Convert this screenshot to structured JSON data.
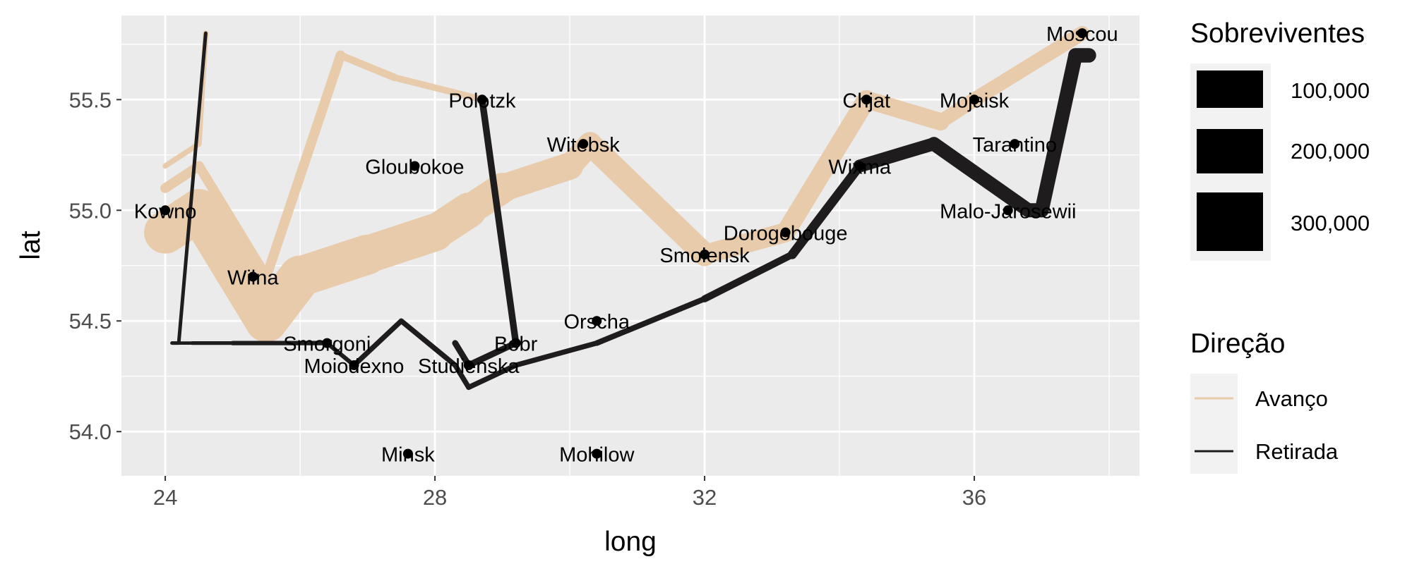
{
  "chart_data": {
    "type": "line",
    "xlabel": "long",
    "ylabel": "lat",
    "xlim": [
      23.35,
      38.45
    ],
    "ylim": [
      53.8,
      55.88
    ],
    "x_ticks": [
      24,
      28,
      32,
      36
    ],
    "y_ticks": [
      54.0,
      54.5,
      55.0,
      55.5
    ],
    "x_tick_labels": [
      "24",
      "28",
      "32",
      "36"
    ],
    "y_tick_labels": [
      "54.0",
      "54.5",
      "55.0",
      "55.5"
    ],
    "grid": true,
    "background": "#ebebeb",
    "legend_placement": "right",
    "size_legend": {
      "title": "Sobreviventes",
      "entries": [
        {
          "label": "100,000",
          "value": 100000
        },
        {
          "label": "200,000",
          "value": 200000
        },
        {
          "label": "300,000",
          "value": 300000
        }
      ]
    },
    "color_legend": {
      "title": "Direção",
      "entries": [
        {
          "label": "Avanço",
          "color": "#e8cbab"
        },
        {
          "label": "Retirada",
          "color": "#1e1c1c"
        }
      ]
    },
    "series": [
      {
        "group": 1,
        "direction": "Avanço",
        "color": "#e8cbab",
        "points": [
          {
            "long": 24.0,
            "lat": 54.9,
            "survivors": 340000
          },
          {
            "long": 24.5,
            "lat": 55.0,
            "survivors": 340000
          },
          {
            "long": 25.5,
            "lat": 54.5,
            "survivors": 340000
          },
          {
            "long": 26.0,
            "lat": 54.7,
            "survivors": 320000
          },
          {
            "long": 27.0,
            "lat": 54.8,
            "survivors": 300000
          },
          {
            "long": 28.0,
            "lat": 54.9,
            "survivors": 280000
          },
          {
            "long": 28.5,
            "lat": 55.0,
            "survivors": 240000
          },
          {
            "long": 29.0,
            "lat": 55.1,
            "survivors": 210000
          },
          {
            "long": 30.0,
            "lat": 55.2,
            "survivors": 180000
          },
          {
            "long": 30.3,
            "lat": 55.3,
            "survivors": 175000
          },
          {
            "long": 32.0,
            "lat": 54.8,
            "survivors": 145000
          },
          {
            "long": 33.2,
            "lat": 54.9,
            "survivors": 140000
          },
          {
            "long": 34.4,
            "lat": 55.5,
            "survivors": 127100
          },
          {
            "long": 35.5,
            "lat": 55.4,
            "survivors": 100000
          },
          {
            "long": 36.0,
            "lat": 55.5,
            "survivors": 100000
          },
          {
            "long": 37.6,
            "lat": 55.8,
            "survivors": 100000
          }
        ]
      },
      {
        "group": 1,
        "direction": "Retirada",
        "color": "#1e1c1c",
        "points": [
          {
            "long": 37.7,
            "lat": 55.7,
            "survivors": 100000
          },
          {
            "long": 37.5,
            "lat": 55.7,
            "survivors": 98000
          },
          {
            "long": 37.0,
            "lat": 55.0,
            "survivors": 97000
          },
          {
            "long": 36.8,
            "lat": 55.0,
            "survivors": 96000
          },
          {
            "long": 35.4,
            "lat": 55.3,
            "survivors": 87000
          },
          {
            "long": 34.3,
            "lat": 55.2,
            "survivors": 55000
          },
          {
            "long": 33.3,
            "lat": 54.8,
            "survivors": 37000
          },
          {
            "long": 32.0,
            "lat": 54.6,
            "survivors": 24000
          },
          {
            "long": 30.4,
            "lat": 54.4,
            "survivors": 20000
          },
          {
            "long": 29.2,
            "lat": 54.3,
            "survivors": 20000
          },
          {
            "long": 28.5,
            "lat": 54.2,
            "survivors": 20000
          },
          {
            "long": 28.3,
            "lat": 54.3,
            "survivors": 20000
          },
          {
            "long": 27.5,
            "lat": 54.5,
            "survivors": 20000
          },
          {
            "long": 26.8,
            "lat": 54.3,
            "survivors": 12000
          },
          {
            "long": 26.4,
            "lat": 54.4,
            "survivors": 14000
          },
          {
            "long": 25.0,
            "lat": 54.4,
            "survivors": 8000
          },
          {
            "long": 24.4,
            "lat": 54.4,
            "survivors": 4000
          },
          {
            "long": 24.2,
            "lat": 54.4,
            "survivors": 4000
          },
          {
            "long": 24.1,
            "lat": 54.4,
            "survivors": 4000
          }
        ]
      },
      {
        "group": 2,
        "direction": "Avanço",
        "color": "#e8cbab",
        "points": [
          {
            "long": 24.0,
            "lat": 55.1,
            "survivors": 60000
          },
          {
            "long": 24.5,
            "lat": 55.2,
            "survivors": 60000
          },
          {
            "long": 25.5,
            "lat": 54.7,
            "survivors": 60000
          },
          {
            "long": 26.6,
            "lat": 55.7,
            "survivors": 40000
          },
          {
            "long": 27.4,
            "lat": 55.6,
            "survivors": 33000
          },
          {
            "long": 28.7,
            "lat": 55.5,
            "survivors": 33000
          }
        ]
      },
      {
        "group": 2,
        "direction": "Retirada",
        "color": "#1e1c1c",
        "points": [
          {
            "long": 28.7,
            "lat": 55.5,
            "survivors": 33000
          },
          {
            "long": 29.2,
            "lat": 54.4,
            "survivors": 30000
          },
          {
            "long": 28.5,
            "lat": 54.3,
            "survivors": 28000
          },
          {
            "long": 28.3,
            "lat": 54.4,
            "survivors": 28000
          }
        ]
      },
      {
        "group": 3,
        "direction": "Avanço",
        "color": "#e8cbab",
        "points": [
          {
            "long": 24.0,
            "lat": 55.2,
            "survivors": 22000
          },
          {
            "long": 24.5,
            "lat": 55.3,
            "survivors": 22000
          },
          {
            "long": 24.6,
            "lat": 55.8,
            "survivors": 6000
          }
        ]
      },
      {
        "group": 3,
        "direction": "Retirada",
        "color": "#1e1c1c",
        "points": [
          {
            "long": 24.6,
            "lat": 55.8,
            "survivors": 6000
          },
          {
            "long": 24.2,
            "lat": 54.4,
            "survivors": 6000
          },
          {
            "long": 24.1,
            "lat": 54.4,
            "survivors": 6000
          }
        ]
      }
    ],
    "cities": [
      {
        "name": "Kowno",
        "long": 24.0,
        "lat": 55.0
      },
      {
        "name": "Wilna",
        "long": 25.3,
        "lat": 54.7
      },
      {
        "name": "Smorgoni",
        "long": 26.4,
        "lat": 54.4
      },
      {
        "name": "Moiodexno",
        "long": 26.8,
        "lat": 54.3
      },
      {
        "name": "Gloubokoe",
        "long": 27.7,
        "lat": 55.2
      },
      {
        "name": "Minsk",
        "long": 27.6,
        "lat": 53.9
      },
      {
        "name": "Studienska",
        "long": 28.5,
        "lat": 54.3
      },
      {
        "name": "Polotzk",
        "long": 28.7,
        "lat": 55.5
      },
      {
        "name": "Bobr",
        "long": 29.2,
        "lat": 54.4
      },
      {
        "name": "Witebsk",
        "long": 30.2,
        "lat": 55.3
      },
      {
        "name": "Orscha",
        "long": 30.4,
        "lat": 54.5
      },
      {
        "name": "Mohilow",
        "long": 30.4,
        "lat": 53.9
      },
      {
        "name": "Smolensk",
        "long": 32.0,
        "lat": 54.8
      },
      {
        "name": "Dorogobouge",
        "long": 33.2,
        "lat": 54.9
      },
      {
        "name": "Wixma",
        "long": 34.3,
        "lat": 55.2
      },
      {
        "name": "Chjat",
        "long": 34.4,
        "lat": 55.5
      },
      {
        "name": "Mojaisk",
        "long": 36.0,
        "lat": 55.5
      },
      {
        "name": "Moscou",
        "long": 37.6,
        "lat": 55.8
      },
      {
        "name": "Tarantino",
        "long": 36.6,
        "lat": 55.3
      },
      {
        "name": "Malo-Jarosewii",
        "long": 36.5,
        "lat": 55.0
      }
    ]
  }
}
